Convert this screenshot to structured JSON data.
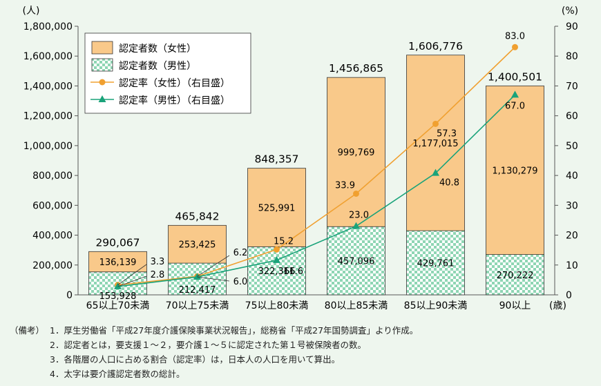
{
  "chart_data": {
    "type": "bar",
    "stacked": true,
    "left_axis_unit": "(人)",
    "right_axis_unit": "(%)",
    "x_unit": "(歳)",
    "categories": [
      "65以上70未満",
      "70以上75未満",
      "75以上80未満",
      "80以上85未満",
      "85以上90未満",
      "90以上"
    ],
    "ylim_left": [
      0,
      1800000
    ],
    "yticks_left": [
      "0",
      "200,000",
      "400,000",
      "600,000",
      "800,000",
      "1,000,000",
      "1,200,000",
      "1,400,000",
      "1,600,000",
      "1,800,000"
    ],
    "ylim_right": [
      0,
      90
    ],
    "yticks_right": [
      "0",
      "10",
      "20",
      "30",
      "40",
      "50",
      "60",
      "70",
      "80",
      "90"
    ],
    "series": [
      {
        "name": "認定者数（女性）",
        "kind": "bar",
        "color": "#f9c98a",
        "values": [
          136139,
          253425,
          525991,
          999769,
          1177015,
          1130279
        ],
        "labels": [
          "136,139",
          "253,425",
          "525,991",
          "999,769",
          "1,177,015",
          "1,130,279"
        ]
      },
      {
        "name": "認定者数（男性）",
        "kind": "bar",
        "color": "#6cc8a0",
        "values": [
          153928,
          212417,
          322366,
          457096,
          429761,
          270222
        ],
        "labels": [
          "153,928",
          "212,417",
          "322,366",
          "457,096",
          "429,761",
          "270,222"
        ]
      },
      {
        "name": "認定率（女性）（右目盛）",
        "kind": "line",
        "color": "#f0a030",
        "values": [
          3.3,
          6.2,
          15.2,
          33.9,
          57.3,
          83.0
        ],
        "labels": [
          "3.3",
          "6.2",
          "15.2",
          "33.9",
          "57.3",
          "83.0"
        ]
      },
      {
        "name": "認定率（男性）（右目盛）",
        "kind": "line",
        "color": "#1aa37a",
        "values": [
          2.8,
          6.0,
          11.6,
          23.0,
          40.8,
          67.0
        ],
        "labels": [
          "2.8",
          "6.0",
          "11.6",
          "23.0",
          "40.8",
          "67.0"
        ]
      }
    ],
    "totals": [
      290067,
      465842,
      848357,
      1456865,
      1606776,
      1400501
    ],
    "totals_labels": [
      "290,067",
      "465,842",
      "848,357",
      "1,456,865",
      "1,606,776",
      "1,400,501"
    ],
    "legend_position": "top-left",
    "grid": false
  },
  "notes": {
    "head": "（備考）",
    "items": [
      "1．厚生労働省「平成27年度介護保険事業状況報告」，総務省「平成27年国勢調査」より作成。",
      "2．認定者とは，要支援１～２，要介護１～５に認定された第１号被保険者の数。",
      "3．各階層の人口に占める割合（認定率）は，日本人の人口を用いて算出。",
      "4．太字は要介護認定者数の総計。"
    ]
  }
}
